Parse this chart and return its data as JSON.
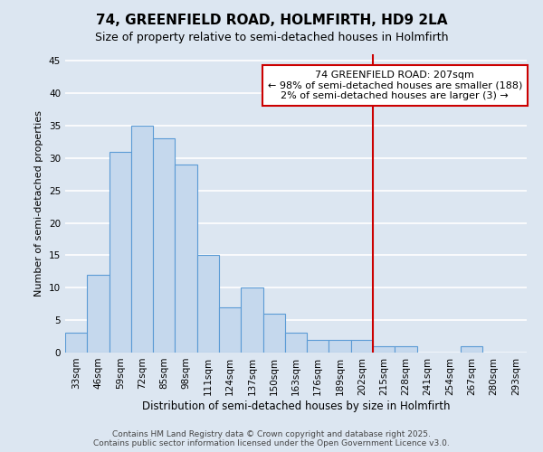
{
  "title": "74, GREENFIELD ROAD, HOLMFIRTH, HD9 2LA",
  "subtitle": "Size of property relative to semi-detached houses in Holmfirth",
  "xlabel": "Distribution of semi-detached houses by size in Holmfirth",
  "ylabel": "Number of semi-detached properties",
  "bar_labels": [
    "33sqm",
    "46sqm",
    "59sqm",
    "72sqm",
    "85sqm",
    "98sqm",
    "111sqm",
    "124sqm",
    "137sqm",
    "150sqm",
    "163sqm",
    "176sqm",
    "189sqm",
    "202sqm",
    "215sqm",
    "228sqm",
    "241sqm",
    "254sqm",
    "267sqm",
    "280sqm",
    "293sqm"
  ],
  "bar_values": [
    3,
    12,
    31,
    35,
    33,
    29,
    15,
    7,
    10,
    6,
    3,
    2,
    2,
    2,
    1,
    1,
    0,
    0,
    1,
    0,
    0
  ],
  "bar_color": "#c5d8ed",
  "bar_edge_color": "#5b9bd5",
  "background_color": "#dce6f1",
  "grid_color": "#ffffff",
  "ylim": [
    0,
    46
  ],
  "yticks": [
    0,
    5,
    10,
    15,
    20,
    25,
    30,
    35,
    40,
    45
  ],
  "vline_x_index": 13,
  "vline_color": "#cc0000",
  "annotation_line1": "74 GREENFIELD ROAD: 207sqm",
  "annotation_line2": "← 98% of semi-detached houses are smaller (188)",
  "annotation_line3": "2% of semi-detached houses are larger (3) →",
  "annotation_box_color": "#ffffff",
  "annotation_box_edge": "#cc0000",
  "footer_text": "Contains HM Land Registry data © Crown copyright and database right 2025.\nContains public sector information licensed under the Open Government Licence v3.0.",
  "title_fontsize": 11,
  "subtitle_fontsize": 9,
  "annotation_fontsize": 8,
  "ylabel_fontsize": 8,
  "xlabel_fontsize": 8.5,
  "tick_fontsize": 7.5,
  "footer_fontsize": 6.5
}
